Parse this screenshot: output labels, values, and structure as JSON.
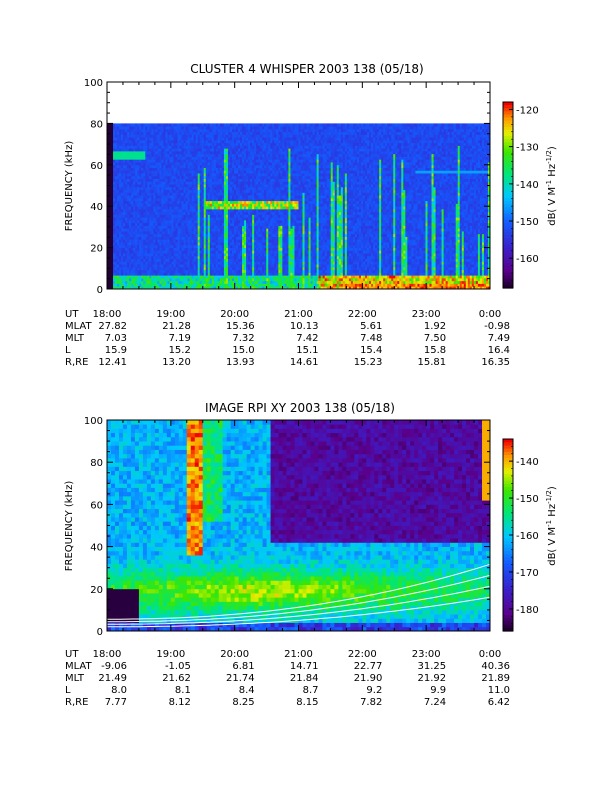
{
  "chart_data": [
    {
      "type": "heatmap",
      "title": "CLUSTER 4 WHISPER 2003 138 (05/18)",
      "ylabel": "FREQUENCY (kHz)",
      "ylim": [
        0,
        100
      ],
      "yticks": [
        "0",
        "20",
        "40",
        "60",
        "80",
        "100"
      ],
      "ylim_data": [
        0,
        80
      ],
      "colorbar": {
        "label": "dB( V M",
        "label_sup1": "-1",
        "label_mid": " Hz",
        "label_sup2": "-1/2",
        "label_end": ")",
        "ticks": [
          "-120",
          "-130",
          "-140",
          "-150",
          "-160"
        ],
        "range": [
          -168,
          -118
        ]
      },
      "ephemeris": {
        "labels": [
          "UT",
          "MLAT",
          "MLT",
          "L",
          "R,RE"
        ],
        "columns": [
          [
            "18:00",
            "27.82",
            "7.03",
            "15.9",
            "12.41"
          ],
          [
            "19:00",
            "21.28",
            "7.19",
            "15.2",
            "13.20"
          ],
          [
            "20:00",
            "15.36",
            "7.32",
            "15.0",
            "13.93"
          ],
          [
            "21:00",
            "10.13",
            "7.42",
            "15.1",
            "14.61"
          ],
          [
            "22:00",
            "5.61",
            "7.48",
            "15.4",
            "15.23"
          ],
          [
            "23:00",
            "1.92",
            "7.50",
            "15.8",
            "15.81"
          ],
          [
            "0:00",
            "-0.98",
            "7.49",
            "16.4",
            "16.35"
          ]
        ]
      }
    },
    {
      "type": "heatmap",
      "title": "IMAGE RPI XY 2003 138 (05/18)",
      "ylabel": "FREQUENCY (kHz)",
      "ylim": [
        0,
        100
      ],
      "yticks": [
        "0",
        "20",
        "40",
        "60",
        "80",
        "100"
      ],
      "colorbar": {
        "label": "dB( V M",
        "label_sup1": "-1",
        "label_mid": " Hz",
        "label_sup2": "-1/2",
        "label_end": ")",
        "ticks": [
          "-140",
          "-150",
          "-160",
          "-170",
          "-180"
        ],
        "range": [
          -186,
          -134
        ]
      },
      "ephemeris": {
        "labels": [
          "UT",
          "MLAT",
          "MLT",
          "L",
          "R,RE"
        ],
        "columns": [
          [
            "18:00",
            "-9.06",
            "21.49",
            "8.0",
            "7.77"
          ],
          [
            "19:00",
            "-1.05",
            "21.62",
            "8.1",
            "8.12"
          ],
          [
            "20:00",
            "6.81",
            "21.74",
            "8.4",
            "8.25"
          ],
          [
            "21:00",
            "14.71",
            "21.84",
            "8.7",
            "8.15"
          ],
          [
            "22:00",
            "22.77",
            "21.90",
            "9.2",
            "7.82"
          ],
          [
            "23:00",
            "31.25",
            "21.92",
            "9.9",
            "7.24"
          ],
          [
            "0:00",
            "40.36",
            "21.89",
            "11.0",
            "6.42"
          ]
        ]
      }
    }
  ]
}
